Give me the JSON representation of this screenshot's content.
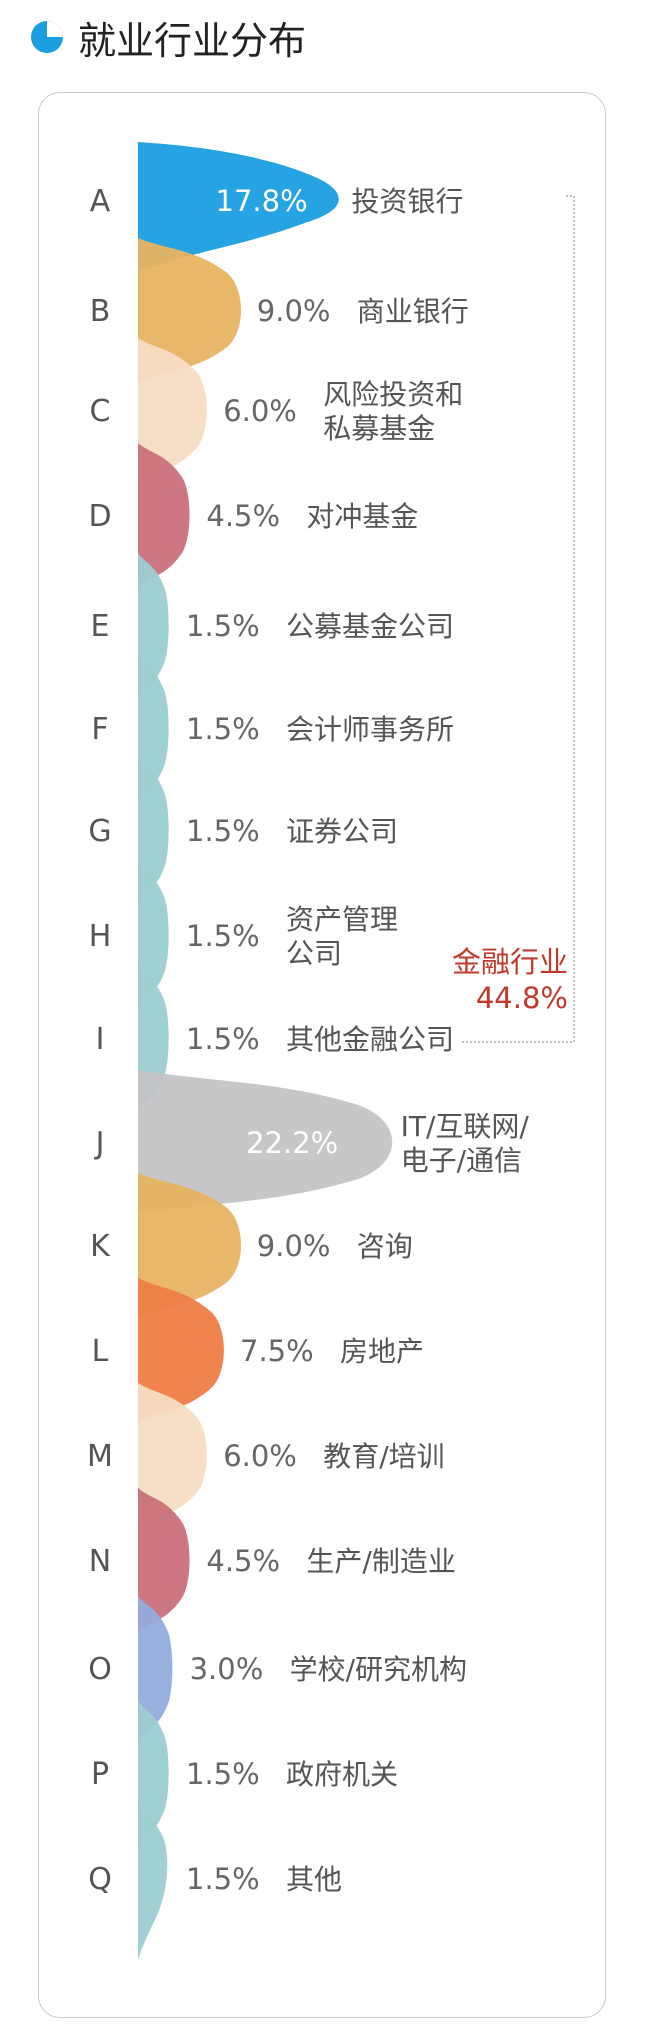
{
  "title": "就业行业分布",
  "chart_data": {
    "type": "area",
    "title": "就业行业分布",
    "unit": "%",
    "categories": [
      {
        "letter": "A",
        "name": [
          "投资银行"
        ],
        "value": 17.8,
        "color": "#1a9ee0"
      },
      {
        "letter": "B",
        "name": [
          "商业银行"
        ],
        "value": 9.0,
        "color": "#e8b361"
      },
      {
        "letter": "C",
        "name": [
          "风险投资和",
          "私募基金"
        ],
        "value": 6.0,
        "color": "#f7dcc3"
      },
      {
        "letter": "D",
        "name": [
          "对冲基金"
        ],
        "value": 4.5,
        "color": "#c9707a"
      },
      {
        "letter": "E",
        "name": [
          "公募基金公司"
        ],
        "value": 1.5,
        "color": "#9ccdd2"
      },
      {
        "letter": "F",
        "name": [
          "会计师事务所"
        ],
        "value": 1.5,
        "color": "#9ccdd2"
      },
      {
        "letter": "G",
        "name": [
          "证券公司"
        ],
        "value": 1.5,
        "color": "#9ccdd2"
      },
      {
        "letter": "H",
        "name": [
          "资产管理",
          "公司"
        ],
        "value": 1.5,
        "color": "#9ccdd2"
      },
      {
        "letter": "I",
        "name": [
          "其他金融公司"
        ],
        "value": 1.5,
        "color": "#9ccdd2"
      },
      {
        "letter": "J",
        "name": [
          "IT/互联网/",
          "电子/通信"
        ],
        "value": 22.2,
        "color": "#c4c4c6"
      },
      {
        "letter": "K",
        "name": [
          "咨询"
        ],
        "value": 9.0,
        "color": "#e8b361"
      },
      {
        "letter": "L",
        "name": [
          "房地产"
        ],
        "value": 7.5,
        "color": "#ee7d45"
      },
      {
        "letter": "M",
        "name": [
          "教育/培训"
        ],
        "value": 6.0,
        "color": "#f7dcc3"
      },
      {
        "letter": "N",
        "name": [
          "生产/制造业"
        ],
        "value": 4.5,
        "color": "#c9707a"
      },
      {
        "letter": "O",
        "name": [
          "学校/研究机构"
        ],
        "value": 3.0,
        "color": "#92acdc"
      },
      {
        "letter": "P",
        "name": [
          "政府机关"
        ],
        "value": 1.5,
        "color": "#9ccdd2"
      },
      {
        "letter": "Q",
        "name": [
          "其他"
        ],
        "value": 1.5,
        "color": "#9ccdd2"
      }
    ],
    "group": {
      "label": [
        "金融行业"
      ],
      "value": "44.8%",
      "color": "#c0392b"
    }
  }
}
